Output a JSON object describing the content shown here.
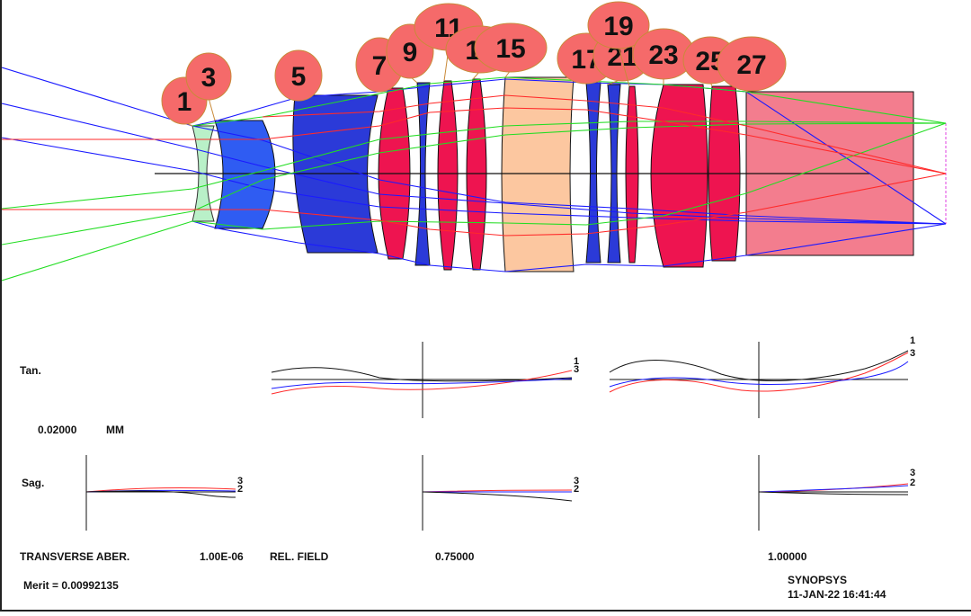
{
  "surface_labels": [
    "1",
    "3",
    "5",
    "7",
    "9",
    "11",
    "13",
    "15",
    "17",
    "21",
    "19",
    "23",
    "25",
    "27"
  ],
  "colors": {
    "ray_blue": "#1a1aff",
    "ray_green": "#22dd22",
    "ray_red": "#ff2a2a",
    "lens_dark_blue": "#2b3ad8",
    "lens_blue": "#2f5cf2",
    "lens_crimson": "#ee1450",
    "lens_peach": "#fcc7a0",
    "lens_pale_green": "#b9f0c8",
    "prism_pink": "#f37d8e",
    "balloon_fill": "#f56a6a",
    "balloon_stroke": "#c98a3a"
  },
  "aberration_plot": {
    "tan_label": "Tan.",
    "sag_label": "Sag.",
    "scale_value": "0.02000",
    "scale_unit": "MM",
    "transverse_label": "TRANSVERSE ABER.",
    "transverse_value": "1.00E-06",
    "rel_field_label": "REL. FIELD",
    "fields": [
      "0.75000",
      "1.00000"
    ],
    "curve_ids": [
      "1",
      "3",
      "2"
    ]
  },
  "merit": "Merit = 0.00992135",
  "software": "SYNOPSYS",
  "timestamp": "11-JAN-22  16:41:44"
}
